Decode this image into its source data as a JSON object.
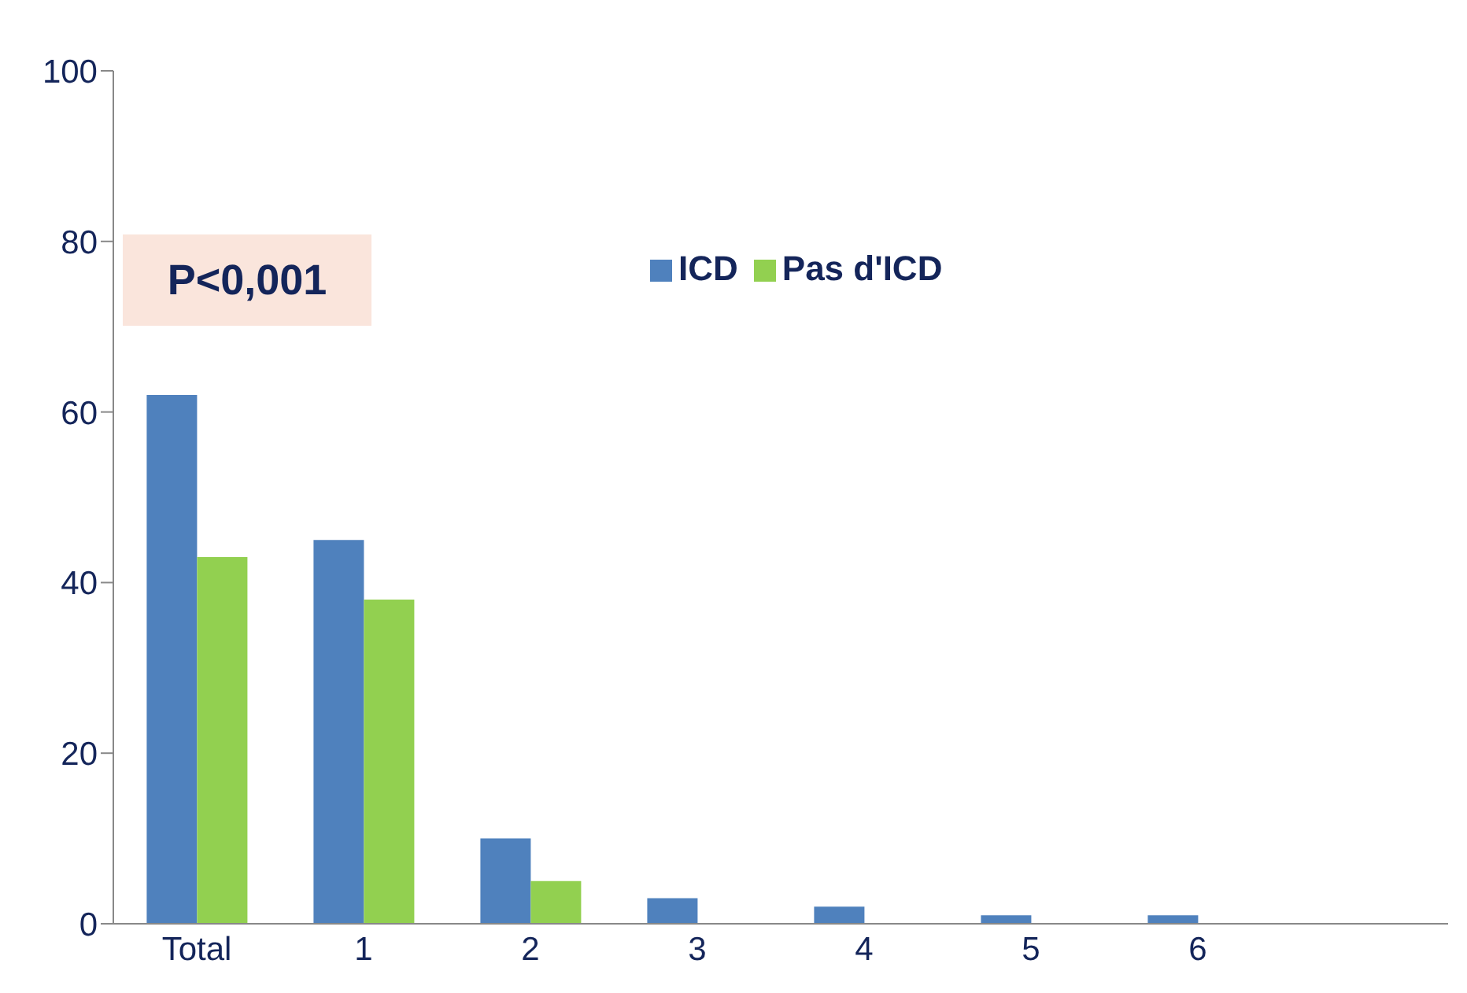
{
  "chart_data": {
    "type": "bar",
    "categories": [
      "Total",
      "1",
      "2",
      "3",
      "4",
      "5",
      "6",
      null
    ],
    "series": [
      {
        "name": "ICD",
        "color": "#4f81bd",
        "values": [
          62,
          45,
          10,
          3,
          2,
          1,
          1,
          null
        ]
      },
      {
        "name": "Pas d'ICD",
        "color": "#92d050",
        "values": [
          43,
          38,
          5,
          0,
          0,
          0,
          0,
          null
        ]
      }
    ],
    "ylim": [
      0,
      100
    ],
    "yticks": [
      0,
      20,
      40,
      60,
      80,
      100
    ],
    "grid": false,
    "legend": "top",
    "annotations": [
      "P<0,001"
    ]
  }
}
